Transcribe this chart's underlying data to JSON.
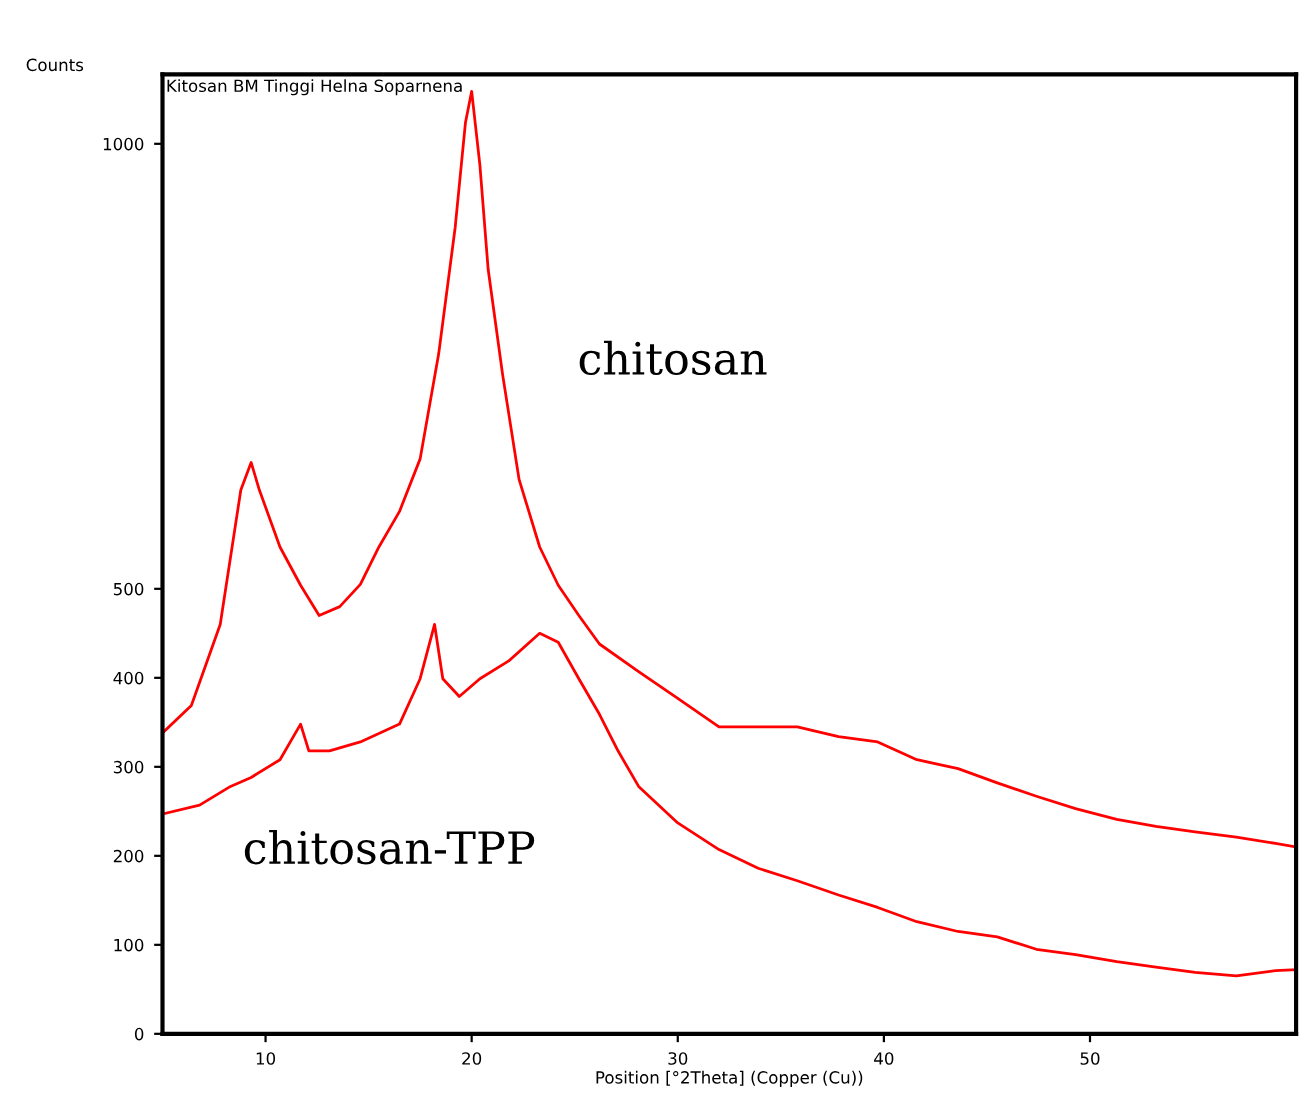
{
  "chart_data": {
    "type": "line",
    "xlabel": "Position [°2Theta] (Copper (Cu))",
    "ylabel": "Counts",
    "xlim": [
      5,
      60
    ],
    "xticks": [
      10,
      20,
      30,
      40,
      50
    ],
    "ylim": [
      0,
      1078
    ],
    "yticks": [
      0,
      100,
      200,
      300,
      400,
      500,
      1000
    ],
    "grid": false,
    "marker": "none",
    "line_style": "solid",
    "series": [
      {
        "color": "#ff0000",
        "x": [
          5.0,
          6.4,
          7.8,
          8.8,
          9.3,
          9.7,
          10.7,
          11.7,
          12.6,
          13.6,
          14.6,
          15.5,
          16.5,
          17.5,
          18.4,
          19.2,
          19.7,
          20.0,
          20.4,
          20.8,
          21.5,
          22.3,
          23.3,
          24.2,
          25.2,
          26.2,
          28.1,
          30.0,
          32.0,
          33.9,
          35.8,
          37.8,
          39.7,
          41.6,
          43.6,
          45.5,
          47.4,
          49.3,
          51.3,
          53.2,
          55.1,
          57.1,
          59.0,
          60.0
        ],
        "values": [
          338,
          369,
          460,
          611,
          642,
          611,
          547,
          504,
          470,
          480,
          505,
          547,
          587,
          646,
          764,
          906,
          1024,
          1059,
          976,
          859,
          741,
          623,
          547,
          504,
          470,
          438,
          407,
          377,
          345,
          345,
          345,
          334,
          328,
          308,
          298,
          282,
          267,
          253,
          241,
          233,
          227,
          221,
          214,
          210
        ]
      },
      {
        "color": "#ff0000",
        "x": [
          5.0,
          6.8,
          8.3,
          9.3,
          10.7,
          11.7,
          12.1,
          13.1,
          14.6,
          16.5,
          17.5,
          18.2,
          18.6,
          19.4,
          20.4,
          21.8,
          23.3,
          24.2,
          25.2,
          26.2,
          27.1,
          28.1,
          30.0,
          32.0,
          33.9,
          35.8,
          37.8,
          39.7,
          41.6,
          43.6,
          45.5,
          47.4,
          49.3,
          51.3,
          53.2,
          55.1,
          57.1,
          59.0,
          60.0
        ],
        "values": [
          247,
          257,
          278,
          288,
          308,
          348,
          318,
          318,
          328,
          348,
          399,
          460,
          399,
          379,
          399,
          419,
          450,
          440,
          399,
          359,
          318,
          278,
          237,
          207,
          186,
          172,
          156,
          142,
          126,
          115,
          109,
          95,
          89,
          81,
          75,
          69,
          65,
          71,
          72
        ]
      }
    ],
    "annotations": [
      "Kitosan BM Tinggi Helna Soparnena",
      "chitosan",
      "chitosan-TPP"
    ]
  }
}
